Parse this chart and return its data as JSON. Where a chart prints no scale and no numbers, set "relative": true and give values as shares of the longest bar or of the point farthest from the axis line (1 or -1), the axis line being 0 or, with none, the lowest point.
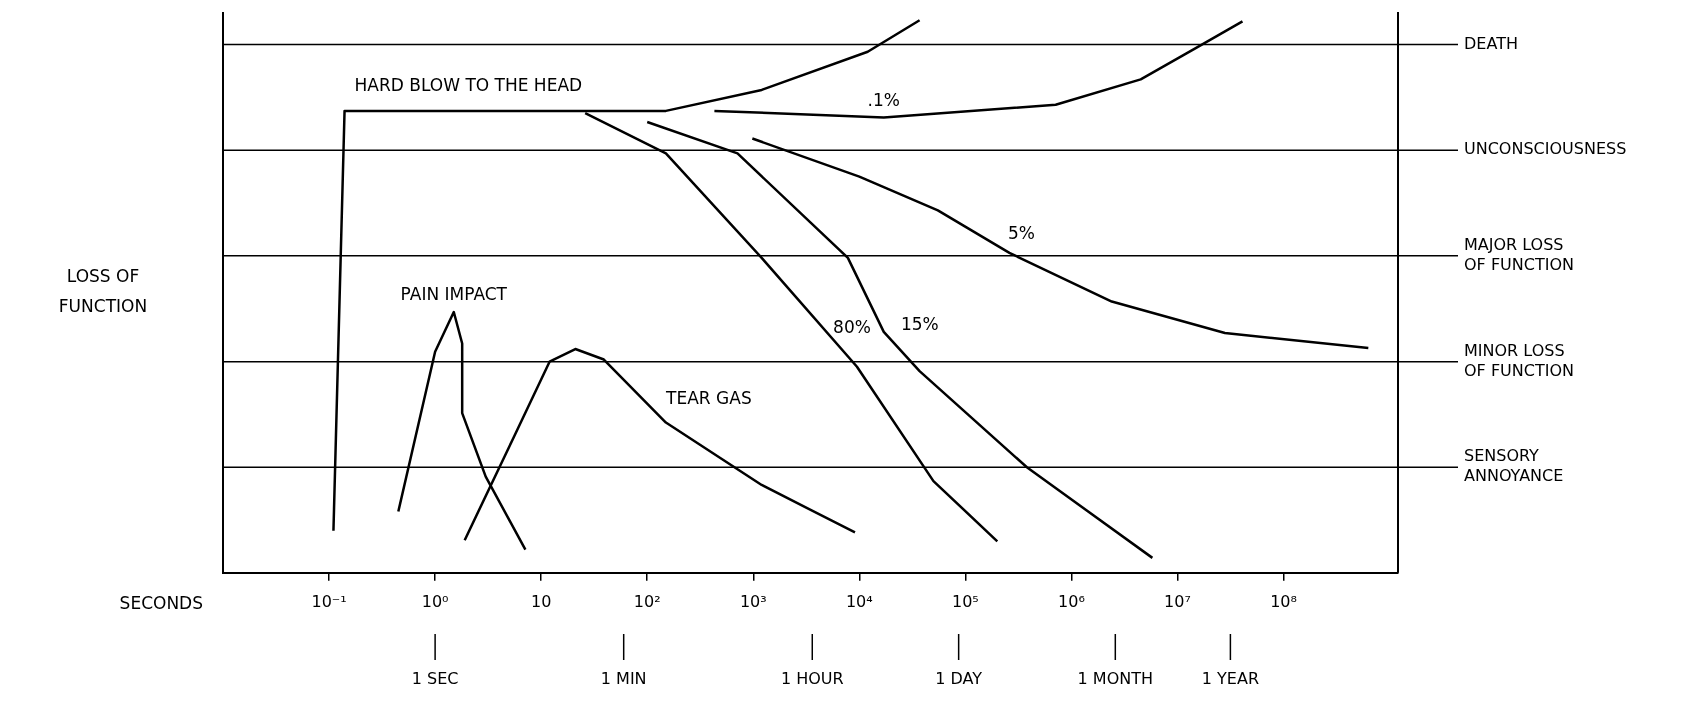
{
  "chart_data": {
    "type": "line",
    "xlabel": "SECONDS",
    "ylabel": "LOSS OF FUNCTION",
    "log": "x",
    "marker": "none",
    "relative": true,
    "xlim": [
      0.01,
      1200000000
    ],
    "xticks": [
      {
        "value": 0.1,
        "label": "10⁻¹"
      },
      {
        "value": 1,
        "label": "10⁰"
      },
      10,
      {
        "value": 100,
        "label": "10²"
      },
      {
        "value": 1000,
        "label": "10³"
      },
      {
        "value": 10000,
        "label": "10⁴"
      },
      {
        "value": 100000,
        "label": "10⁵"
      },
      {
        "value": 1000000,
        "label": "10⁶"
      },
      {
        "value": 10000000,
        "label": "10⁷"
      },
      {
        "value": 100000000,
        "label": "10⁸"
      }
    ],
    "ref_lines": [
      {
        "axis": "x",
        "value": 1,
        "label": "1 SEC"
      },
      {
        "axis": "x",
        "value": 60,
        "label": "1 MIN"
      },
      {
        "axis": "x",
        "value": 3600,
        "label": "1 HOUR"
      },
      {
        "axis": "x",
        "value": 86400,
        "label": "1 DAY"
      },
      {
        "axis": "x",
        "value": 2592000,
        "label": "1 MONTH"
      },
      {
        "axis": "x",
        "value": 31536000,
        "label": "1 YEAR"
      },
      {
        "axis": "y",
        "value": 0.191,
        "label": "SENSORY ANNOYANCE"
      },
      {
        "axis": "y",
        "value": 0.382,
        "label": "MINOR LOSS OF FUNCTION"
      },
      {
        "axis": "y",
        "value": 0.574,
        "label": "MAJOR LOSS OF FUNCTION"
      },
      {
        "axis": "y",
        "value": 0.765,
        "label": "UNCONSCIOUSNESS"
      },
      {
        "axis": "y",
        "value": 0.956,
        "label": "DEATH"
      }
    ],
    "series": [
      {
        "name": "HARD BLOW TO THE HEAD",
        "color": "#000000",
        "x": [
          0.11,
          0.14,
          26,
          150,
          1200,
          12000,
          37000
        ],
        "values": [
          0.076,
          0.836,
          0.836,
          0.836,
          0.874,
          0.943,
          1
        ]
      },
      {
        "name": ".1%",
        "color": "#000000",
        "x": [
          430,
          17000,
          710000,
          4500000,
          15000000,
          41000000
        ],
        "values": [
          0.836,
          0.824,
          0.847,
          0.893,
          0.95,
          0.998
        ]
      },
      {
        "name": "80%",
        "color": "#000000",
        "x": [
          26,
          150,
          1200,
          9500,
          50000,
          200000
        ],
        "values": [
          0.832,
          0.759,
          0.57,
          0.373,
          0.166,
          0.057
        ]
      },
      {
        "name": "15%",
        "color": "#000000",
        "x": [
          100,
          710,
          7800,
          17000,
          37000,
          380000,
          5800000
        ],
        "values": [
          0.816,
          0.759,
          0.57,
          0.436,
          0.365,
          0.191,
          0.027
        ]
      },
      {
        "name": "5%",
        "color": "#000000",
        "x": [
          980,
          10000,
          55000,
          260000,
          2400000,
          28000000,
          630000000
        ],
        "values": [
          0.786,
          0.717,
          0.656,
          0.579,
          0.491,
          0.434,
          0.407
        ]
      },
      {
        "name": "PAIN IMPACT",
        "color": "#000000",
        "x": [
          0.45,
          1.0,
          1.5,
          1.8,
          1.8,
          3.0,
          7.1
        ],
        "values": [
          0.111,
          0.4,
          0.472,
          0.415,
          0.289,
          0.174,
          0.042
        ]
      },
      {
        "name": "TEAR GAS",
        "color": "#000000",
        "x": [
          1.9,
          5.5,
          12,
          21,
          39,
          150,
          1200,
          9100
        ],
        "values": [
          0.059,
          0.245,
          0.382,
          0.405,
          0.386,
          0.272,
          0.159,
          0.073
        ]
      }
    ]
  }
}
